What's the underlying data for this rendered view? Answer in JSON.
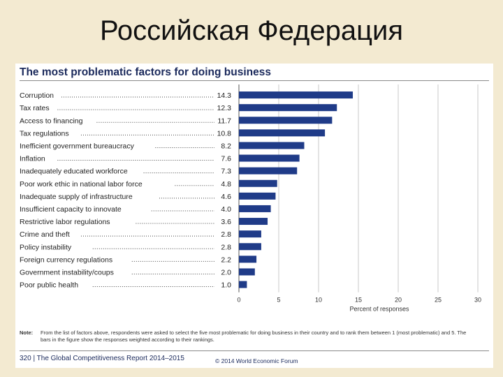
{
  "slide": {
    "title": "Российская Федерация"
  },
  "panel": {
    "title": "The most problematic factors for doing business",
    "note_label": "Note:",
    "note_text": "From the list of factors above, respondents were asked to select the five most problematic for doing business in their country and to rank them between 1 (most problematic) and 5. The bars in the figure show the responses weighted according to their rankings.",
    "footer_left": "320 | The Global Competitiveness Report 2014–2015",
    "footer_right": "© 2014 World Economic Forum"
  },
  "colors": {
    "bar": "#1f3b88",
    "grid": "#c8c8c8",
    "axis": "#555555"
  },
  "chart_data": {
    "type": "bar",
    "orientation": "horizontal",
    "categories": [
      "Corruption",
      "Tax rates",
      "Access to financing",
      "Tax regulations",
      "Inefficient government bureaucracy",
      "Inflation",
      "Inadequately educated workforce",
      "Poor work ethic in national labor force",
      "Inadequate supply of infrastructure",
      "Insufficient capacity to innovate",
      "Restrictive labor regulations",
      "Crime and theft",
      "Policy instability",
      "Foreign currency regulations",
      "Government instability/coups",
      "Poor public health"
    ],
    "values": [
      14.3,
      12.3,
      11.7,
      10.8,
      8.2,
      7.6,
      7.3,
      4.8,
      4.6,
      4.0,
      3.6,
      2.8,
      2.8,
      2.2,
      2.0,
      1.0
    ],
    "value_labels": [
      "14.3",
      "12.3",
      "11.7",
      "10.8",
      "8.2",
      "7.6",
      "7.3",
      "4.8",
      "4.6",
      "4.0",
      "3.6",
      "2.8",
      "2.8",
      "2.2",
      "2.0",
      "1.0"
    ],
    "xlim": [
      0,
      30
    ],
    "xticks": [
      "0",
      "5",
      "10",
      "15",
      "20",
      "25",
      "30"
    ],
    "xlabel": "Percent of responses",
    "grid": true
  }
}
